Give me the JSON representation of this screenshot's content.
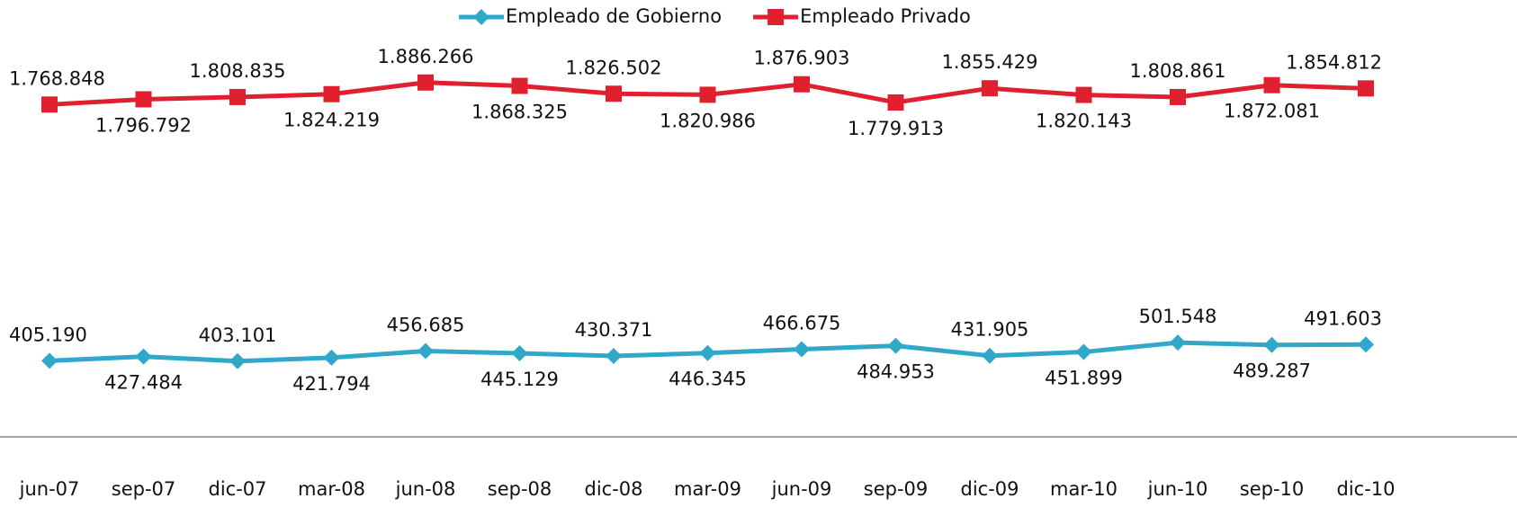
{
  "chart_data": {
    "type": "line",
    "categories": [
      "jun-07",
      "sep-07",
      "dic-07",
      "mar-08",
      "jun-08",
      "sep-08",
      "dic-08",
      "mar-09",
      "jun-09",
      "sep-09",
      "dic-09",
      "mar-10",
      "jun-10",
      "sep-10",
      "dic-10"
    ],
    "series": [
      {
        "name": "Empleado de Gobierno",
        "color": "#2fa8c9",
        "marker": "diamond",
        "values": [
          405190,
          427484,
          403101,
          421794,
          456685,
          445129,
          430371,
          446345,
          466675,
          484953,
          431905,
          451899,
          501548,
          489287,
          491603
        ],
        "value_labels": [
          "405.190",
          "427.484",
          "403.101",
          "421.794",
          "456.685",
          "445.129",
          "430.371",
          "446.345",
          "466.675",
          "484.953",
          "431.905",
          "451.899",
          "501.548",
          "489.287",
          "491.603"
        ]
      },
      {
        "name": "Empleado Privado",
        "color": "#e0202e",
        "marker": "square",
        "values": [
          1768848,
          1796792,
          1808835,
          1824219,
          1886266,
          1868325,
          1826502,
          1820986,
          1876903,
          1779913,
          1855429,
          1820143,
          1808861,
          1872081,
          1854812
        ],
        "value_labels": [
          "1.768.848",
          "1.796.792",
          "1.808.835",
          "1.824.219",
          "1.886.266",
          "1.868.325",
          "1.826.502",
          "1.820.986",
          "1.876.903",
          "1.779.913",
          "1.855.429",
          "1.820.143",
          "1.808.861",
          "1.872.081",
          "1.854.812"
        ]
      }
    ],
    "ylim": [
      0,
      2000000
    ],
    "grid": false,
    "legend": "top"
  }
}
